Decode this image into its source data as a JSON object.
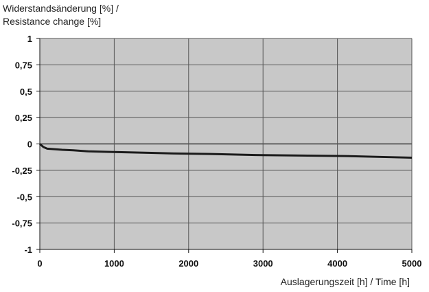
{
  "chart_data": {
    "type": "line",
    "title": "",
    "ylabel_line1": "Widerstandsänderung [%] /",
    "ylabel_line2": "Resistance change [%]",
    "xlabel": "Auslagerungszeit [h] / Time [h]",
    "xlim": [
      0,
      5000
    ],
    "ylim": [
      -1,
      1
    ],
    "xticks": [
      0,
      1000,
      2000,
      3000,
      4000,
      5000
    ],
    "yticks": [
      1,
      0.75,
      0.5,
      0.25,
      0,
      -0.25,
      -0.5,
      -0.75,
      -1
    ],
    "ytick_labels": [
      "1",
      "0,75",
      "0,5",
      "0,25",
      "0",
      "-0,25",
      "-0,5",
      "-0,75",
      "-1"
    ],
    "grid": true,
    "colors": {
      "plot_bg": "#c8c8c8",
      "grid": "#555555",
      "line": "#1a1a1a"
    },
    "series": [
      {
        "name": "Resistance change",
        "x": [
          0,
          50,
          100,
          300,
          450,
          650,
          900,
          1200,
          1500,
          1800,
          2300,
          2900,
          3500,
          4100,
          4700,
          5000
        ],
        "y": [
          0,
          -0.03,
          -0.045,
          -0.055,
          -0.06,
          -0.07,
          -0.075,
          -0.08,
          -0.085,
          -0.09,
          -0.095,
          -0.105,
          -0.11,
          -0.115,
          -0.125,
          -0.13
        ]
      }
    ]
  }
}
